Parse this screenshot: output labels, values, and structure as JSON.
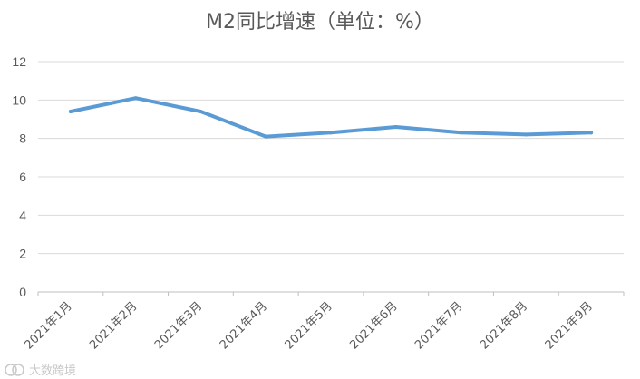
{
  "chart_data": {
    "type": "line",
    "title": "M2同比增速（单位：%）",
    "xlabel": "",
    "ylabel": "",
    "categories": [
      "2021年1月",
      "2021年2月",
      "2021年3月",
      "2021年4月",
      "2021年5月",
      "2021年6月",
      "2021年7月",
      "2021年8月",
      "2021年9月"
    ],
    "series": [
      {
        "values": [
          9.4,
          10.1,
          9.4,
          8.1,
          8.3,
          8.6,
          8.3,
          8.2,
          8.3
        ],
        "color": "#5b9bd5"
      }
    ],
    "ylim": [
      0,
      12
    ],
    "yticks": [
      "0",
      "2",
      "4",
      "6",
      "8",
      "10",
      "12"
    ],
    "grid": true,
    "legend": "none"
  },
  "watermark": "大数跨境"
}
